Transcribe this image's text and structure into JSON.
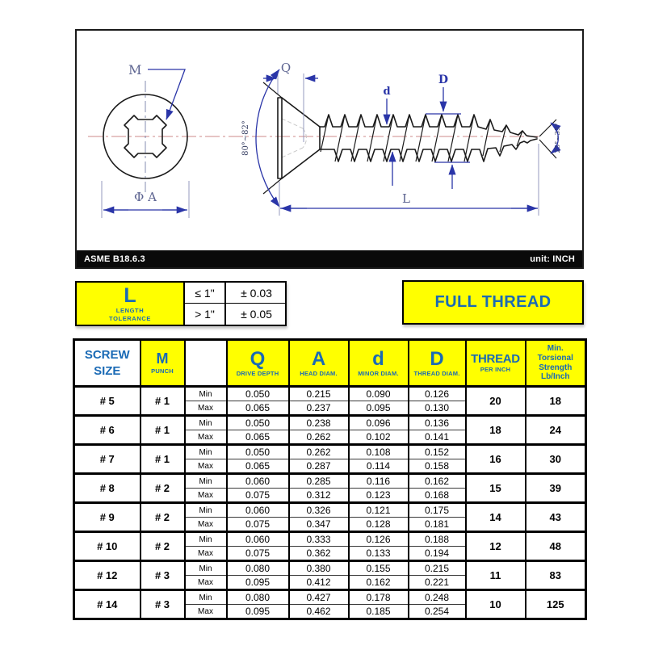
{
  "drawing": {
    "labels": {
      "recess": "M",
      "head_diameter": "Φ A",
      "drive_depth": "Q",
      "minor_diameter": "d",
      "thread_diameter": "D",
      "length": "L",
      "head_angle": "80°~82°",
      "tip_angle": "25°~35°"
    },
    "footer": {
      "standard": "ASME B18.6.3",
      "unit": "unit: INCH"
    }
  },
  "tolerance_table": {
    "symbol": "L",
    "label_line1": "LENGTH",
    "label_line2": "TOLERANCE",
    "rows": [
      {
        "condition": "≤ 1\"",
        "value": "± 0.03"
      },
      {
        "condition": "> 1\"",
        "value": "± 0.05"
      }
    ]
  },
  "banner": {
    "text": "FULL THREAD"
  },
  "spec_table": {
    "headers": {
      "screw_size": [
        "SCREW",
        "SIZE"
      ],
      "m": {
        "symbol": "M",
        "sub": "PUNCH"
      },
      "q": {
        "symbol": "Q",
        "sub": "DRIVE DEPTH"
      },
      "a": {
        "symbol": "A",
        "sub": "HEAD DIAM."
      },
      "d": {
        "symbol": "d",
        "sub": "MINOR DIAM."
      },
      "dd": {
        "symbol": "D",
        "sub": "THREAD DIAM."
      },
      "thread": {
        "symbol": "THREAD",
        "sub": "PER INCH"
      },
      "strength": [
        "Min.",
        "Torsional",
        "Strength",
        "Lb/Inch"
      ]
    },
    "row_labels": {
      "min": "Min",
      "max": "Max"
    },
    "rows": [
      {
        "size": "# 5",
        "punch": "# 1",
        "min": [
          "0.050",
          "0.215",
          "0.090",
          "0.126"
        ],
        "max": [
          "0.065",
          "0.237",
          "0.095",
          "0.130"
        ],
        "tpi": "20",
        "strength": "18"
      },
      {
        "size": "# 6",
        "punch": "# 1",
        "min": [
          "0.050",
          "0.238",
          "0.096",
          "0.136"
        ],
        "max": [
          "0.065",
          "0.262",
          "0.102",
          "0.141"
        ],
        "tpi": "18",
        "strength": "24"
      },
      {
        "size": "# 7",
        "punch": "# 1",
        "min": [
          "0.050",
          "0.262",
          "0.108",
          "0.152"
        ],
        "max": [
          "0.065",
          "0.287",
          "0.114",
          "0.158"
        ],
        "tpi": "16",
        "strength": "30"
      },
      {
        "size": "# 8",
        "punch": "# 2",
        "min": [
          "0.060",
          "0.285",
          "0.116",
          "0.162"
        ],
        "max": [
          "0.075",
          "0.312",
          "0.123",
          "0.168"
        ],
        "tpi": "15",
        "strength": "39"
      },
      {
        "size": "# 9",
        "punch": "# 2",
        "min": [
          "0.060",
          "0.326",
          "0.121",
          "0.175"
        ],
        "max": [
          "0.075",
          "0.347",
          "0.128",
          "0.181"
        ],
        "tpi": "14",
        "strength": "43"
      },
      {
        "size": "# 10",
        "punch": "# 2",
        "min": [
          "0.060",
          "0.333",
          "0.126",
          "0.188"
        ],
        "max": [
          "0.075",
          "0.362",
          "0.133",
          "0.194"
        ],
        "tpi": "12",
        "strength": "48"
      },
      {
        "size": "# 12",
        "punch": "# 3",
        "min": [
          "0.080",
          "0.380",
          "0.155",
          "0.215"
        ],
        "max": [
          "0.095",
          "0.412",
          "0.162",
          "0.221"
        ],
        "tpi": "11",
        "strength": "83"
      },
      {
        "size": "# 14",
        "punch": "# 3",
        "min": [
          "0.080",
          "0.427",
          "0.178",
          "0.248"
        ],
        "max": [
          "0.095",
          "0.462",
          "0.185",
          "0.254"
        ],
        "tpi": "10",
        "strength": "125"
      }
    ]
  },
  "colors": {
    "accent_yellow": "#ffff00",
    "header_blue": "#1a6ab5",
    "dim_blue": "#2a35a8",
    "centerline_red": "#cc8888",
    "label_blue": "#5d6491",
    "bar_black": "#0a0a0a",
    "grid_black": "#000000"
  }
}
